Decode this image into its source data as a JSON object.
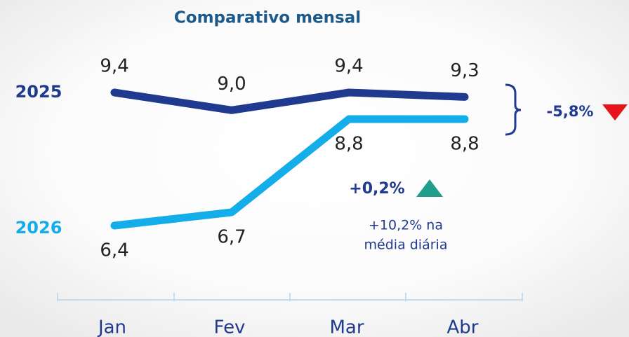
{
  "chart_data": {
    "type": "line",
    "title": "Comparativo mensal",
    "categories": [
      "Jan",
      "Fev",
      "Mar",
      "Abr"
    ],
    "series": [
      {
        "name": "2025",
        "color": "#1f3a8f",
        "values": [
          9.4,
          9.0,
          9.4,
          9.3
        ],
        "value_labels": [
          "9,4",
          "9,0",
          "9,4",
          "9,3"
        ]
      },
      {
        "name": "2026",
        "color": "#13aee9",
        "values": [
          6.4,
          6.7,
          8.8,
          8.8
        ],
        "value_labels": [
          "6,4",
          "6,7",
          "8,8",
          "8,8"
        ]
      }
    ],
    "annotations": {
      "change_2025": "-5,8%",
      "change_2026": "+0,2%",
      "daily_note": [
        "+10,2% na",
        "média diária"
      ]
    }
  }
}
